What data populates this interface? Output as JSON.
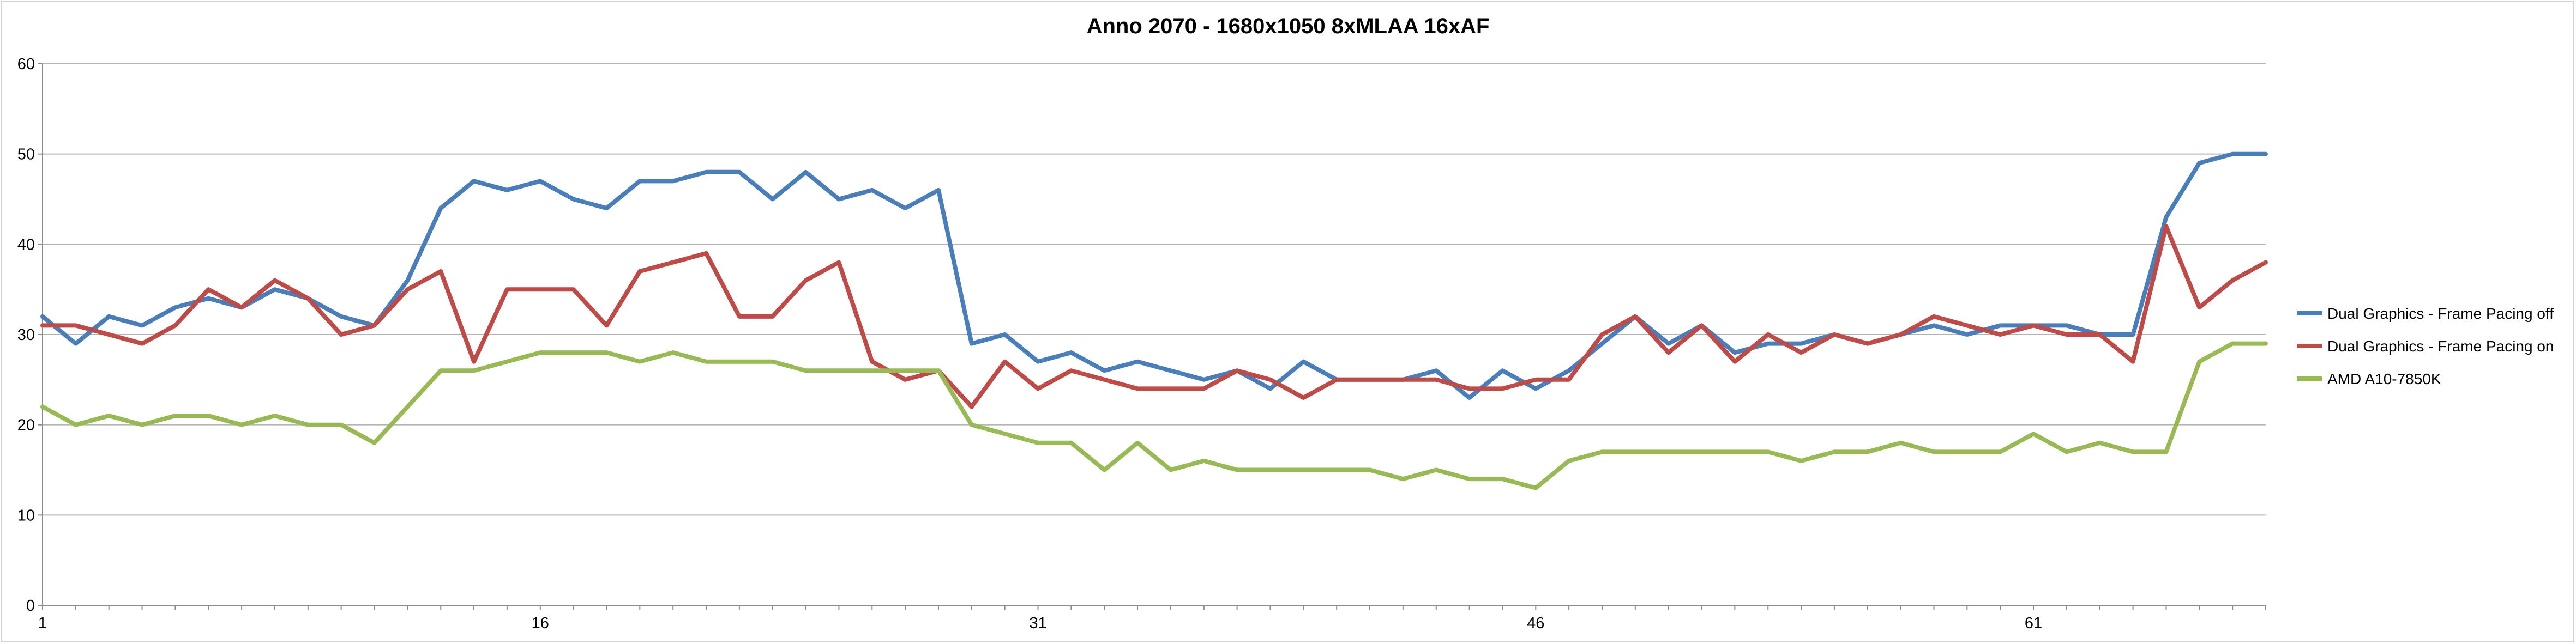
{
  "chart_data": {
    "type": "line",
    "title": "Anno 2070 - 1680x1050 8xMLAA 16xAF",
    "xlabel": "",
    "ylabel": "",
    "ylim": [
      0,
      60
    ],
    "yticks": [
      "0",
      "10",
      "20",
      "30",
      "40",
      "50",
      "60"
    ],
    "xlim": [
      1,
      68
    ],
    "xticks": [
      {
        "value": 1,
        "label": "1"
      },
      {
        "value": 16,
        "label": "16"
      },
      {
        "value": 31,
        "label": "31"
      },
      {
        "value": 46,
        "label": "46"
      },
      {
        "value": 61,
        "label": "61"
      }
    ],
    "grid": true,
    "legend_position": "right",
    "series": [
      {
        "name": "Dual Graphics - Frame Pacing off",
        "color": "#4a7ebb",
        "values": [
          32,
          29,
          32,
          31,
          33,
          34,
          33,
          35,
          34,
          32,
          31,
          36,
          44,
          47,
          46,
          47,
          45,
          44,
          47,
          47,
          48,
          48,
          45,
          48,
          45,
          46,
          44,
          46,
          29,
          30,
          27,
          28,
          26,
          27,
          26,
          25,
          26,
          24,
          27,
          25,
          25,
          25,
          26,
          23,
          26,
          24,
          26,
          29,
          32,
          29,
          31,
          28,
          29,
          29,
          30,
          29,
          30,
          31,
          30,
          31,
          31,
          31,
          30,
          30,
          43,
          49,
          50,
          50
        ]
      },
      {
        "name": "Dual Graphics - Frame Pacing on",
        "color": "#be4b48",
        "values": [
          31,
          31,
          30,
          29,
          31,
          35,
          33,
          36,
          34,
          30,
          31,
          35,
          37,
          27,
          35,
          35,
          35,
          31,
          37,
          38,
          39,
          32,
          32,
          36,
          38,
          27,
          25,
          26,
          22,
          27,
          24,
          26,
          25,
          24,
          24,
          24,
          26,
          25,
          23,
          25,
          25,
          25,
          25,
          24,
          24,
          25,
          25,
          30,
          32,
          28,
          31,
          27,
          30,
          28,
          30,
          29,
          30,
          32,
          31,
          30,
          31,
          30,
          30,
          27,
          42,
          33,
          36,
          38
        ]
      },
      {
        "name": "AMD A10-7850K",
        "color": "#98b954",
        "values": [
          22,
          20,
          21,
          20,
          21,
          21,
          20,
          21,
          20,
          20,
          18,
          22,
          26,
          26,
          27,
          28,
          28,
          28,
          27,
          28,
          27,
          27,
          27,
          26,
          26,
          26,
          26,
          26,
          20,
          19,
          18,
          18,
          15,
          18,
          15,
          16,
          15,
          15,
          15,
          15,
          15,
          14,
          15,
          14,
          14,
          13,
          16,
          17,
          17,
          17,
          17,
          17,
          17,
          16,
          17,
          17,
          18,
          17,
          17,
          17,
          19,
          17,
          18,
          17,
          17,
          27,
          29,
          29
        ]
      }
    ]
  }
}
